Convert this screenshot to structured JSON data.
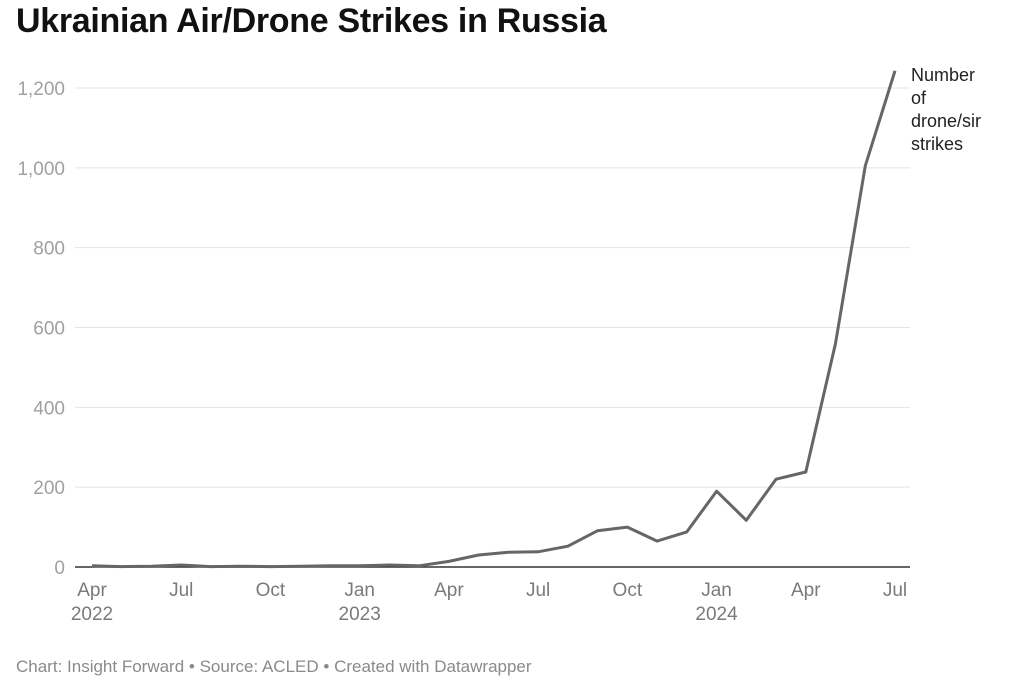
{
  "title": "Ukrainian Air/Drone Strikes in Russia",
  "footer": {
    "parts": [
      "Chart: Insight Forward",
      "Source: ACLED",
      "Created with Datawrapper"
    ],
    "separator": " • "
  },
  "colors": {
    "line": "#666666",
    "grid": "#e4e4e4",
    "axis": "#333333"
  },
  "chart_data": {
    "type": "line",
    "title": "Ukrainian Air/Drone Strikes in Russia",
    "xlabel": "",
    "ylabel": "",
    "ylim": [
      0,
      1250
    ],
    "y_ticks": [
      0,
      200,
      400,
      600,
      800,
      1000,
      1200
    ],
    "y_tick_labels": [
      "0",
      "200",
      "400",
      "600",
      "800",
      "1,000",
      "1,200"
    ],
    "x_ticks": [
      {
        "date": "2022-04",
        "label": "Apr",
        "year": "2022"
      },
      {
        "date": "2022-07",
        "label": "Jul",
        "year": ""
      },
      {
        "date": "2022-10",
        "label": "Oct",
        "year": ""
      },
      {
        "date": "2023-01",
        "label": "Jan",
        "year": "2023"
      },
      {
        "date": "2023-04",
        "label": "Apr",
        "year": ""
      },
      {
        "date": "2023-07",
        "label": "Jul",
        "year": ""
      },
      {
        "date": "2023-10",
        "label": "Oct",
        "year": ""
      },
      {
        "date": "2024-01",
        "label": "Jan",
        "year": "2024"
      },
      {
        "date": "2024-04",
        "label": "Apr",
        "year": ""
      },
      {
        "date": "2024-07",
        "label": "Jul",
        "year": ""
      }
    ],
    "grid": true,
    "series": [
      {
        "name": "Number of drone/sir strikes",
        "label_lines": [
          "Number",
          "of",
          "drone/sir",
          "strikes"
        ],
        "x": [
          "2022-04",
          "2022-05",
          "2022-06",
          "2022-07",
          "2022-08",
          "2022-09",
          "2022-10",
          "2022-11",
          "2022-12",
          "2023-01",
          "2023-02",
          "2023-03",
          "2023-04",
          "2023-05",
          "2023-06",
          "2023-07",
          "2023-08",
          "2023-09",
          "2023-10",
          "2023-11",
          "2023-12",
          "2024-01",
          "2024-02",
          "2024-03",
          "2024-04",
          "2024-05",
          "2024-06",
          "2024-07"
        ],
        "values": [
          3,
          1,
          2,
          5,
          1,
          2,
          1,
          2,
          3,
          3,
          5,
          3,
          14,
          30,
          37,
          38,
          52,
          91,
          100,
          65,
          88,
          190,
          117,
          220,
          238,
          560,
          1005,
          1243
        ]
      }
    ]
  }
}
